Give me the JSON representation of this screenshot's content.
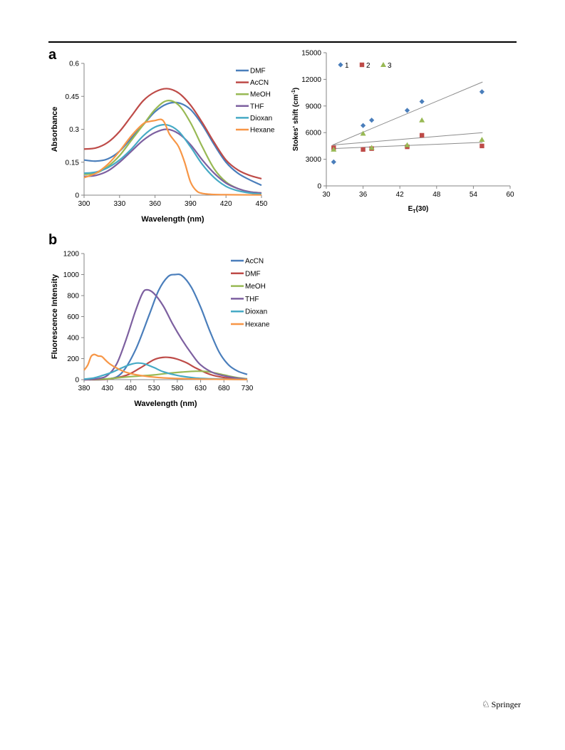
{
  "panel_labels": {
    "a": "a",
    "b": "b"
  },
  "footer": {
    "publisher": "Springer",
    "icon": "springer-horse-icon"
  },
  "chart_data": [
    {
      "id": "absorbance",
      "type": "line",
      "title": "",
      "xlabel": "Wavelength (nm)",
      "ylabel": "Absorbance",
      "xlim": [
        300,
        450
      ],
      "ylim": [
        0,
        0.6
      ],
      "x_ticks": [
        "300",
        "330",
        "360",
        "390",
        "420",
        "450"
      ],
      "y_ticks": [
        "0",
        "0.15",
        "0.3",
        "0.45",
        "0.6"
      ],
      "grid": false,
      "legend_position": "right",
      "series": [
        {
          "name": "DMF",
          "color": "#4a7ebb",
          "points": [
            [
              300,
              0.16
            ],
            [
              310,
              0.155
            ],
            [
              320,
              0.165
            ],
            [
              330,
              0.2
            ],
            [
              340,
              0.26
            ],
            [
              350,
              0.32
            ],
            [
              360,
              0.38
            ],
            [
              370,
              0.415
            ],
            [
              380,
              0.42
            ],
            [
              390,
              0.39
            ],
            [
              400,
              0.32
            ],
            [
              410,
              0.23
            ],
            [
              420,
              0.15
            ],
            [
              430,
              0.1
            ],
            [
              440,
              0.07
            ],
            [
              450,
              0.045
            ]
          ]
        },
        {
          "name": "AcCN",
          "color": "#be4b48",
          "points": [
            [
              300,
              0.21
            ],
            [
              310,
              0.215
            ],
            [
              320,
              0.24
            ],
            [
              330,
              0.29
            ],
            [
              340,
              0.36
            ],
            [
              350,
              0.43
            ],
            [
              360,
              0.47
            ],
            [
              370,
              0.485
            ],
            [
              380,
              0.465
            ],
            [
              390,
              0.41
            ],
            [
              400,
              0.33
            ],
            [
              410,
              0.24
            ],
            [
              420,
              0.16
            ],
            [
              430,
              0.115
            ],
            [
              440,
              0.09
            ],
            [
              450,
              0.075
            ]
          ]
        },
        {
          "name": "MeOH",
          "color": "#98b954",
          "points": [
            [
              300,
              0.095
            ],
            [
              310,
              0.1
            ],
            [
              320,
              0.13
            ],
            [
              330,
              0.18
            ],
            [
              340,
              0.25
            ],
            [
              350,
              0.32
            ],
            [
              360,
              0.39
            ],
            [
              370,
              0.43
            ],
            [
              380,
              0.41
            ],
            [
              390,
              0.33
            ],
            [
              400,
              0.22
            ],
            [
              410,
              0.12
            ],
            [
              420,
              0.06
            ],
            [
              430,
              0.03
            ],
            [
              440,
              0.015
            ],
            [
              450,
              0.01
            ]
          ]
        },
        {
          "name": "THF",
          "color": "#7d60a0",
          "points": [
            [
              300,
              0.085
            ],
            [
              310,
              0.09
            ],
            [
              320,
              0.11
            ],
            [
              330,
              0.15
            ],
            [
              340,
              0.2
            ],
            [
              350,
              0.25
            ],
            [
              360,
              0.285
            ],
            [
              370,
              0.3
            ],
            [
              380,
              0.28
            ],
            [
              390,
              0.23
            ],
            [
              400,
              0.16
            ],
            [
              410,
              0.1
            ],
            [
              420,
              0.055
            ],
            [
              430,
              0.03
            ],
            [
              440,
              0.015
            ],
            [
              450,
              0.01
            ]
          ]
        },
        {
          "name": "Dioxan",
          "color": "#46aac5",
          "points": [
            [
              300,
              0.1
            ],
            [
              310,
              0.105
            ],
            [
              320,
              0.125
            ],
            [
              330,
              0.16
            ],
            [
              340,
              0.21
            ],
            [
              350,
              0.27
            ],
            [
              360,
              0.31
            ],
            [
              370,
              0.32
            ],
            [
              380,
              0.29
            ],
            [
              390,
              0.22
            ],
            [
              400,
              0.14
            ],
            [
              410,
              0.08
            ],
            [
              420,
              0.04
            ],
            [
              430,
              0.02
            ],
            [
              440,
              0.01
            ],
            [
              450,
              0.005
            ]
          ]
        },
        {
          "name": "Hexane",
          "color": "#f79646",
          "points": [
            [
              300,
              0.08
            ],
            [
              310,
              0.1
            ],
            [
              320,
              0.14
            ],
            [
              330,
              0.2
            ],
            [
              340,
              0.27
            ],
            [
              350,
              0.325
            ],
            [
              355,
              0.335
            ],
            [
              360,
              0.34
            ],
            [
              365,
              0.345
            ],
            [
              368,
              0.33
            ],
            [
              372,
              0.28
            ],
            [
              376,
              0.25
            ],
            [
              380,
              0.22
            ],
            [
              385,
              0.15
            ],
            [
              390,
              0.06
            ],
            [
              395,
              0.02
            ],
            [
              400,
              0.008
            ],
            [
              410,
              0.003
            ],
            [
              420,
              0.002
            ],
            [
              450,
              0.001
            ]
          ]
        }
      ]
    },
    {
      "id": "stokes-shift",
      "type": "scatter",
      "title": "",
      "xlabel": "ET(30)",
      "xlabel_main": "E",
      "xlabel_sub": "T",
      "xlabel_rest": "(30)",
      "ylabel": "Stokes' shift (cm-1)",
      "ylabel_main": "Stokes' shift (cm",
      "ylabel_sup": "-1",
      "ylabel_end": ")",
      "xlim": [
        30,
        60
      ],
      "ylim": [
        0,
        15000
      ],
      "x_ticks": [
        "30",
        "36",
        "42",
        "48",
        "54",
        "60"
      ],
      "y_ticks": [
        "0",
        "3000",
        "6000",
        "9000",
        "12000",
        "15000"
      ],
      "grid": false,
      "legend_position": "top-left",
      "series": [
        {
          "name": "1",
          "color": "#4a7ebb",
          "marker": "diamond",
          "points": [
            [
              31.2,
              2700
            ],
            [
              36,
              6800
            ],
            [
              37.4,
              7400
            ],
            [
              43.2,
              8500
            ],
            [
              45.6,
              9500
            ],
            [
              55.4,
              10600
            ]
          ],
          "trendline": [
            [
              31,
              4600
            ],
            [
              55.5,
              11700
            ]
          ]
        },
        {
          "name": "2",
          "color": "#be4b48",
          "marker": "square",
          "points": [
            [
              31.2,
              4300
            ],
            [
              36,
              4100
            ],
            [
              37.4,
              4200
            ],
            [
              43.2,
              4400
            ],
            [
              45.6,
              5700
            ],
            [
              55.4,
              4500
            ]
          ],
          "trendline": [
            [
              31,
              4600
            ],
            [
              55.5,
              6000
            ]
          ]
        },
        {
          "name": "3",
          "color": "#98b954",
          "marker": "triangle",
          "points": [
            [
              31.2,
              4100
            ],
            [
              36,
              5900
            ],
            [
              37.4,
              4300
            ],
            [
              43.2,
              4600
            ],
            [
              45.6,
              7400
            ],
            [
              55.4,
              5200
            ]
          ],
          "trendline": [
            [
              31,
              4200
            ],
            [
              55.5,
              4900
            ]
          ]
        }
      ]
    },
    {
      "id": "fluorescence",
      "type": "line",
      "title": "",
      "xlabel": "Wavelength (nm)",
      "ylabel": "Fluorescence Intensity",
      "xlim": [
        380,
        730
      ],
      "ylim": [
        0,
        1200
      ],
      "x_ticks": [
        "380",
        "430",
        "480",
        "530",
        "580",
        "630",
        "680",
        "730"
      ],
      "y_ticks": [
        "0",
        "200",
        "400",
        "600",
        "800",
        "1000",
        "1200"
      ],
      "grid": false,
      "legend_position": "right",
      "series": [
        {
          "name": "AcCN",
          "color": "#4a7ebb",
          "points": [
            [
              380,
              0
            ],
            [
              430,
              5
            ],
            [
              460,
              60
            ],
            [
              490,
              280
            ],
            [
              520,
              620
            ],
            [
              540,
              850
            ],
            [
              560,
              980
            ],
            [
              575,
              1000
            ],
            [
              590,
              990
            ],
            [
              610,
              880
            ],
            [
              630,
              690
            ],
            [
              650,
              460
            ],
            [
              670,
              260
            ],
            [
              690,
              140
            ],
            [
              710,
              80
            ],
            [
              730,
              50
            ]
          ]
        },
        {
          "name": "DMF",
          "color": "#be4b48",
          "points": [
            [
              380,
              0
            ],
            [
              430,
              5
            ],
            [
              470,
              40
            ],
            [
              500,
              110
            ],
            [
              530,
              190
            ],
            [
              550,
              212
            ],
            [
              565,
              210
            ],
            [
              580,
              195
            ],
            [
              600,
              160
            ],
            [
              620,
              110
            ],
            [
              650,
              50
            ],
            [
              680,
              20
            ],
            [
              710,
              8
            ],
            [
              730,
              3
            ]
          ]
        },
        {
          "name": "MeOH",
          "color": "#98b954",
          "points": [
            [
              380,
              0
            ],
            [
              430,
              8
            ],
            [
              470,
              25
            ],
            [
              500,
              35
            ],
            [
              530,
              45
            ],
            [
              560,
              60
            ],
            [
              590,
              72
            ],
            [
              620,
              80
            ],
            [
              645,
              76
            ],
            [
              670,
              55
            ],
            [
              690,
              35
            ],
            [
              710,
              18
            ],
            [
              730,
              8
            ]
          ]
        },
        {
          "name": "THF",
          "color": "#7d60a0",
          "points": [
            [
              380,
              0
            ],
            [
              410,
              10
            ],
            [
              430,
              40
            ],
            [
              450,
              150
            ],
            [
              470,
              380
            ],
            [
              490,
              650
            ],
            [
              505,
              820
            ],
            [
              515,
              855
            ],
            [
              530,
              820
            ],
            [
              550,
              700
            ],
            [
              570,
              530
            ],
            [
              590,
              380
            ],
            [
              610,
              250
            ],
            [
              630,
              140
            ],
            [
              660,
              60
            ],
            [
              700,
              20
            ],
            [
              730,
              5
            ]
          ]
        },
        {
          "name": "Dioxan",
          "color": "#46aac5",
          "points": [
            [
              380,
              5
            ],
            [
              400,
              15
            ],
            [
              420,
              40
            ],
            [
              440,
              70
            ],
            [
              460,
              110
            ],
            [
              480,
              145
            ],
            [
              495,
              158
            ],
            [
              510,
              150
            ],
            [
              530,
              115
            ],
            [
              550,
              75
            ],
            [
              580,
              40
            ],
            [
              620,
              15
            ],
            [
              680,
              5
            ],
            [
              730,
              2
            ]
          ]
        },
        {
          "name": "Hexane",
          "color": "#f79646",
          "points": [
            [
              380,
              90
            ],
            [
              388,
              140
            ],
            [
              395,
              220
            ],
            [
              402,
              240
            ],
            [
              410,
              225
            ],
            [
              418,
              220
            ],
            [
              425,
              190
            ],
            [
              435,
              150
            ],
            [
              450,
              110
            ],
            [
              470,
              70
            ],
            [
              500,
              40
            ],
            [
              540,
              20
            ],
            [
              600,
              8
            ],
            [
              680,
              3
            ],
            [
              730,
              1
            ]
          ]
        }
      ]
    }
  ]
}
